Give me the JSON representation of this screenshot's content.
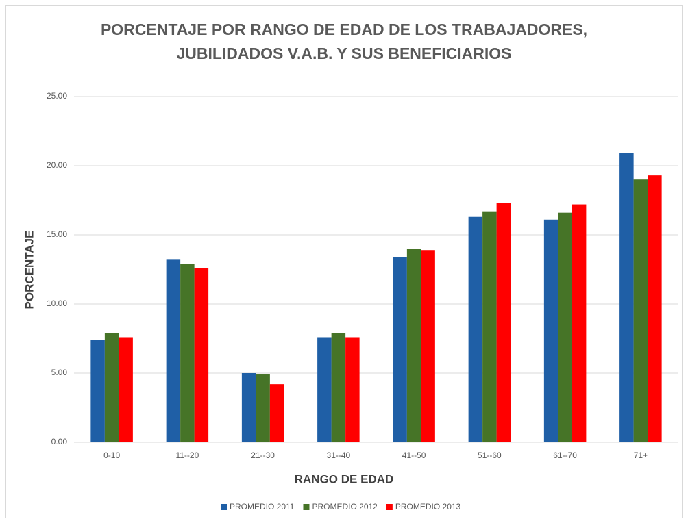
{
  "chart_data": {
    "type": "bar",
    "title": [
      "PORCENTAJE POR RANGO DE EDAD DE LOS TRABAJADORES,",
      "JUBILIDADOS V.A.B. Y SUS BENEFICIARIOS"
    ],
    "x_label": "RANGO DE EDAD",
    "y_label": "PORCENTAJE",
    "categories": [
      "0-10",
      "11--20",
      "21--30",
      "31--40",
      "41--50",
      "51--60",
      "61--70",
      "71+"
    ],
    "series": [
      {
        "name": "PROMEDIO 2011",
        "color": "#1f5fa6",
        "values": [
          7.4,
          13.2,
          5.0,
          7.6,
          13.4,
          16.3,
          16.1,
          20.9
        ]
      },
      {
        "name": "PROMEDIO 2012",
        "color": "#467427",
        "values": [
          7.9,
          12.9,
          4.9,
          7.9,
          14.0,
          16.7,
          16.6,
          19.0
        ]
      },
      {
        "name": "PROMEDIO 2013",
        "color": "#ff0000",
        "values": [
          7.6,
          12.6,
          4.2,
          7.6,
          13.9,
          17.3,
          17.2,
          19.3
        ]
      }
    ],
    "ylim": [
      0,
      25
    ],
    "yticks": [
      {
        "value": 0,
        "label": "0.00"
      },
      {
        "value": 5,
        "label": "5.00"
      },
      {
        "value": 10,
        "label": "10.00"
      },
      {
        "value": 15,
        "label": "15.00"
      },
      {
        "value": 20,
        "label": "20.00"
      },
      {
        "value": 25,
        "label": "25.00"
      }
    ],
    "grid": true,
    "legend": "bottom"
  }
}
